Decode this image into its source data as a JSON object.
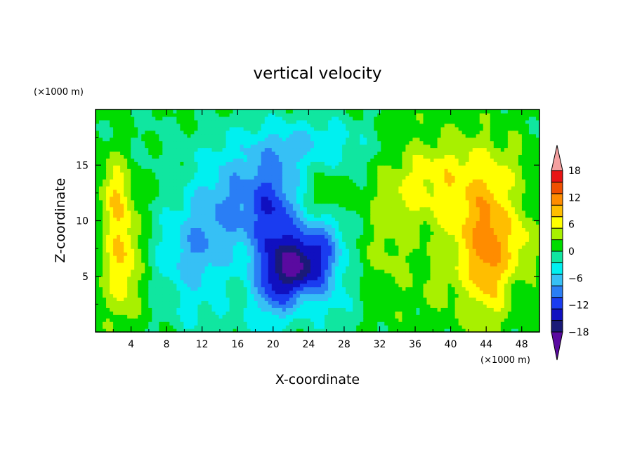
{
  "chart_data": {
    "type": "heatmap",
    "title": "vertical velocity",
    "xlabel": "X-coordinate",
    "ylabel": "Z-coordinate",
    "x_unit": "(×1000 m)",
    "y_unit": "(×1000 m)",
    "xlim": [
      0,
      50
    ],
    "ylim": [
      0,
      20
    ],
    "x_ticks": [
      4,
      8,
      12,
      16,
      20,
      24,
      28,
      32,
      36,
      40,
      44,
      48
    ],
    "y_ticks": [
      5,
      10,
      15
    ],
    "colorbar": {
      "levels": [
        -21,
        -18,
        -15,
        -12,
        -9,
        -6,
        -3,
        0,
        3,
        6,
        9,
        12,
        15,
        18,
        21
      ],
      "tick_labels": [
        18,
        12,
        6,
        0,
        -6,
        -12,
        -18
      ],
      "colors": [
        "#5a0aa0",
        "#1a1a78",
        "#1010c0",
        "#1a3cf0",
        "#2a7ef5",
        "#36c0f5",
        "#00f0f0",
        "#10e6a0",
        "#00dc00",
        "#a8f000",
        "#ffff00",
        "#ffbe00",
        "#ff8c00",
        "#f05000",
        "#e81414",
        "#f4a0a0"
      ],
      "extend": "both"
    },
    "fields": {
      "background": 0.5,
      "blobs": [
        [
          3,
          7,
          2.0,
          6.0,
          9
        ],
        [
          2,
          13,
          1.5,
          3.0,
          5
        ],
        [
          7,
          17,
          4.0,
          3.0,
          -1
        ],
        [
          11,
          7,
          4.0,
          5.0,
          -8
        ],
        [
          15,
          12,
          4.0,
          5.0,
          -8
        ],
        [
          20,
          11,
          3.0,
          5.0,
          -13
        ],
        [
          23,
          6,
          3.0,
          3.0,
          -17
        ],
        [
          20,
          4,
          2.5,
          3.5,
          -10
        ],
        [
          26,
          8,
          2.5,
          4.0,
          -8
        ],
        [
          26,
          12,
          2.0,
          2.0,
          5
        ],
        [
          27,
          2,
          3.0,
          3.0,
          -3
        ],
        [
          24,
          17,
          7.0,
          2.5,
          -6
        ],
        [
          14,
          1,
          5.0,
          2.0,
          -2
        ],
        [
          33,
          7,
          3.0,
          6.0,
          3
        ],
        [
          36,
          13,
          4.0,
          4.0,
          5
        ],
        [
          43,
          9,
          4.0,
          7.0,
          9
        ],
        [
          44.5,
          7,
          1.8,
          6.0,
          6
        ],
        [
          40,
          15,
          4.0,
          3.0,
          3
        ],
        [
          48,
          8,
          2.0,
          3.0,
          5
        ],
        [
          38,
          4,
          2.0,
          2.0,
          2
        ],
        [
          47,
          15,
          3.0,
          3.0,
          2
        ],
        [
          35,
          19,
          3.0,
          1.5,
          1
        ]
      ]
    }
  }
}
